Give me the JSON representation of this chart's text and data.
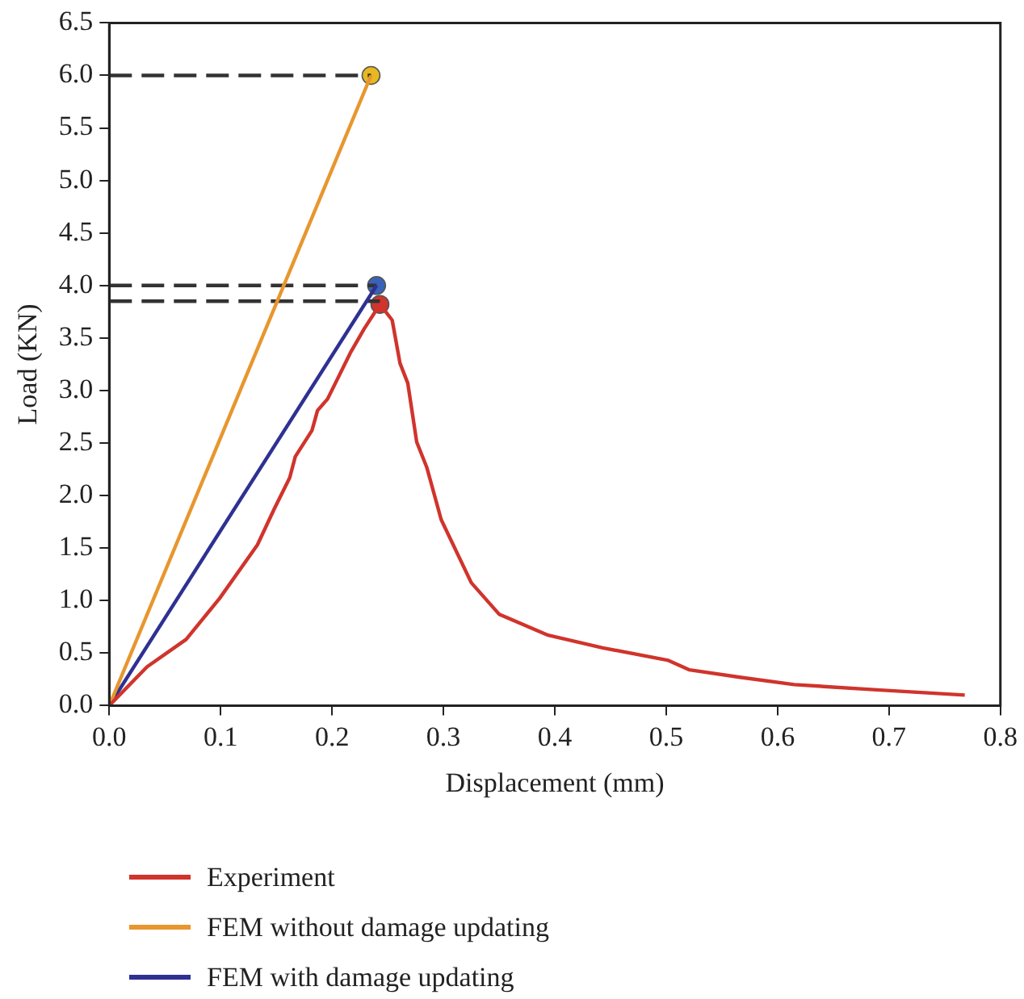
{
  "chart_data": {
    "type": "line",
    "xlabel": "Displacement (mm)",
    "ylabel": "Load (KN)",
    "xlim": [
      0,
      0.8
    ],
    "ylim": [
      0,
      6.5
    ],
    "xticks": [
      {
        "value": 0,
        "label": "0.0"
      },
      {
        "value": 0.1,
        "label": "0.1"
      },
      {
        "value": 0.2,
        "label": "0.2"
      },
      {
        "value": 0.3,
        "label": "0.3"
      },
      {
        "value": 0.4,
        "label": "0.4"
      },
      {
        "value": 0.5,
        "label": "0.5"
      },
      {
        "value": 0.6,
        "label": "0.6"
      },
      {
        "value": 0.7,
        "label": "0.7"
      },
      {
        "value": 0.8,
        "label": "0.8"
      }
    ],
    "yticks": [
      {
        "value": 0,
        "label": "0.0"
      },
      {
        "value": 0.5,
        "label": "0.5"
      },
      {
        "value": 1,
        "label": "1.0"
      },
      {
        "value": 1.5,
        "label": "1.5"
      },
      {
        "value": 2,
        "label": "2.0"
      },
      {
        "value": 2.5,
        "label": "2.5"
      },
      {
        "value": 3,
        "label": "3.0"
      },
      {
        "value": 3.5,
        "label": "3.5"
      },
      {
        "value": 4,
        "label": "4.0"
      },
      {
        "value": 4.5,
        "label": "4.5"
      },
      {
        "value": 5,
        "label": "5.0"
      },
      {
        "value": 5.5,
        "label": "5.5"
      },
      {
        "value": 6,
        "label": "6.0"
      },
      {
        "value": 6.5,
        "label": "6.5"
      }
    ],
    "grid": false,
    "legend": "bottom",
    "marker": "none",
    "line_style": "solid",
    "series": [
      {
        "name": "Experiment",
        "color": "#d0342c",
        "x": [
          0,
          0.034,
          0.069,
          0.099,
          0.133,
          0.148,
          0.162,
          0.167,
          0.182,
          0.187,
          0.196,
          0.217,
          0.229,
          0.243,
          0.254,
          0.261,
          0.268,
          0.276,
          0.285,
          0.298,
          0.325,
          0.35,
          0.394,
          0.443,
          0.502,
          0.521,
          0.566,
          0.615,
          0.689,
          0.768
        ],
        "values": [
          0,
          0.37,
          0.63,
          1.02,
          1.53,
          1.87,
          2.17,
          2.37,
          2.62,
          2.81,
          2.92,
          3.37,
          3.59,
          3.82,
          3.67,
          3.26,
          3.07,
          2.51,
          2.27,
          1.77,
          1.17,
          0.87,
          0.67,
          0.55,
          0.43,
          0.34,
          0.27,
          0.2,
          0.15,
          0.1
        ]
      },
      {
        "name": "FEM without damage updating",
        "color": "#e8962e",
        "x": [
          0,
          0.235
        ],
        "values": [
          0,
          6.0
        ]
      },
      {
        "name": "FEM with damage updating",
        "color": "#2e3192",
        "x": [
          0,
          0.24
        ],
        "values": [
          0,
          4.0
        ]
      },
      {
        "type": "line",
        "line_style": "dashed",
        "color": "#333333",
        "x": [
          0,
          0.235
        ],
        "values": [
          6.0,
          6.0
        ]
      },
      {
        "type": "line",
        "line_style": "dashed",
        "color": "#333333",
        "x": [
          0,
          0.24
        ],
        "values": [
          4.0,
          4.0
        ]
      },
      {
        "type": "line",
        "line_style": "dashed",
        "color": "#333333",
        "x": [
          0,
          0.243
        ],
        "values": [
          3.85,
          3.85
        ]
      },
      {
        "type": "scatter",
        "marker": "circle",
        "x": [
          0.235,
          0.24,
          0.243
        ],
        "values": [
          6.0,
          4.0,
          3.82
        ],
        "colors": [
          "#e8b821",
          "#3a62b8",
          "#d0342c"
        ]
      }
    ]
  }
}
